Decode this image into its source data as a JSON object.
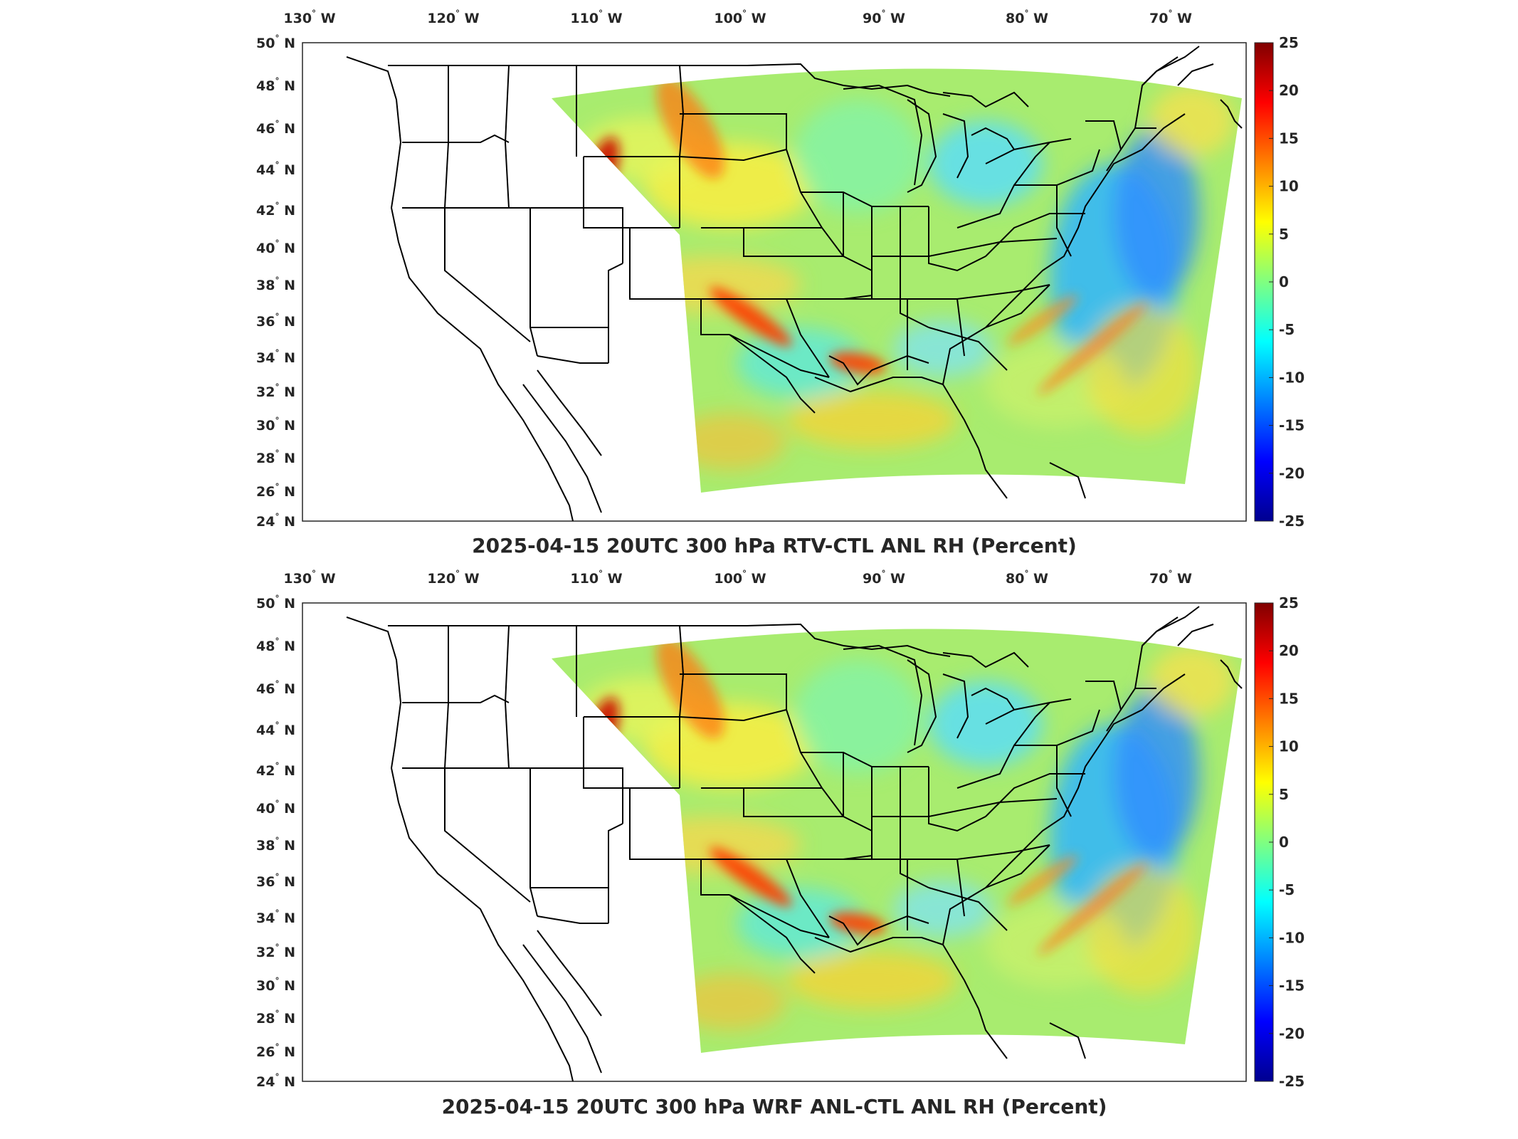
{
  "panels": [
    {
      "title": "2025-04-15 20UTC 300 hPa RTV-CTL ANL RH (Percent)",
      "lon_ticks": [
        {
          "deg": "130",
          "hemi": "W"
        },
        {
          "deg": "120",
          "hemi": "W"
        },
        {
          "deg": "110",
          "hemi": "W"
        },
        {
          "deg": "100",
          "hemi": "W"
        },
        {
          "deg": "90",
          "hemi": "W"
        },
        {
          "deg": "80",
          "hemi": "W"
        },
        {
          "deg": "70",
          "hemi": "W"
        }
      ],
      "lat_ticks": [
        {
          "deg": "50",
          "hemi": "N"
        },
        {
          "deg": "48",
          "hemi": "N"
        },
        {
          "deg": "46",
          "hemi": "N"
        },
        {
          "deg": "44",
          "hemi": "N"
        },
        {
          "deg": "42",
          "hemi": "N"
        },
        {
          "deg": "40",
          "hemi": "N"
        },
        {
          "deg": "38",
          "hemi": "N"
        },
        {
          "deg": "36",
          "hemi": "N"
        },
        {
          "deg": "34",
          "hemi": "N"
        },
        {
          "deg": "32",
          "hemi": "N"
        },
        {
          "deg": "30",
          "hemi": "N"
        },
        {
          "deg": "28",
          "hemi": "N"
        },
        {
          "deg": "26",
          "hemi": "N"
        },
        {
          "deg": "24",
          "hemi": "N"
        }
      ],
      "colorbar_ticks": [
        "25",
        "20",
        "15",
        "10",
        "5",
        "0",
        "-5",
        "-10",
        "-15",
        "-20",
        "-25"
      ]
    },
    {
      "title": "2025-04-15 20UTC 300 hPa WRF ANL-CTL ANL RH (Percent)",
      "lon_ticks": [
        {
          "deg": "130",
          "hemi": "W"
        },
        {
          "deg": "120",
          "hemi": "W"
        },
        {
          "deg": "110",
          "hemi": "W"
        },
        {
          "deg": "100",
          "hemi": "W"
        },
        {
          "deg": "90",
          "hemi": "W"
        },
        {
          "deg": "80",
          "hemi": "W"
        },
        {
          "deg": "70",
          "hemi": "W"
        }
      ],
      "lat_ticks": [
        {
          "deg": "50",
          "hemi": "N"
        },
        {
          "deg": "48",
          "hemi": "N"
        },
        {
          "deg": "46",
          "hemi": "N"
        },
        {
          "deg": "44",
          "hemi": "N"
        },
        {
          "deg": "42",
          "hemi": "N"
        },
        {
          "deg": "40",
          "hemi": "N"
        },
        {
          "deg": "38",
          "hemi": "N"
        },
        {
          "deg": "36",
          "hemi": "N"
        },
        {
          "deg": "34",
          "hemi": "N"
        },
        {
          "deg": "32",
          "hemi": "N"
        },
        {
          "deg": "30",
          "hemi": "N"
        },
        {
          "deg": "28",
          "hemi": "N"
        },
        {
          "deg": "26",
          "hemi": "N"
        },
        {
          "deg": "24",
          "hemi": "N"
        }
      ],
      "colorbar_ticks": [
        "25",
        "20",
        "15",
        "10",
        "5",
        "0",
        "-5",
        "-10",
        "-15",
        "-20",
        "-25"
      ]
    }
  ],
  "colors": {
    "colormap": [
      "#00008f",
      "#0000ff",
      "#0080ff",
      "#00ffff",
      "#80ff80",
      "#ffff00",
      "#ff8000",
      "#ff0000",
      "#800000"
    ],
    "background_field": "#9be86a",
    "map_lines": "#000000"
  },
  "colorbar_range": [
    -25,
    25
  ],
  "units": "Percent"
}
